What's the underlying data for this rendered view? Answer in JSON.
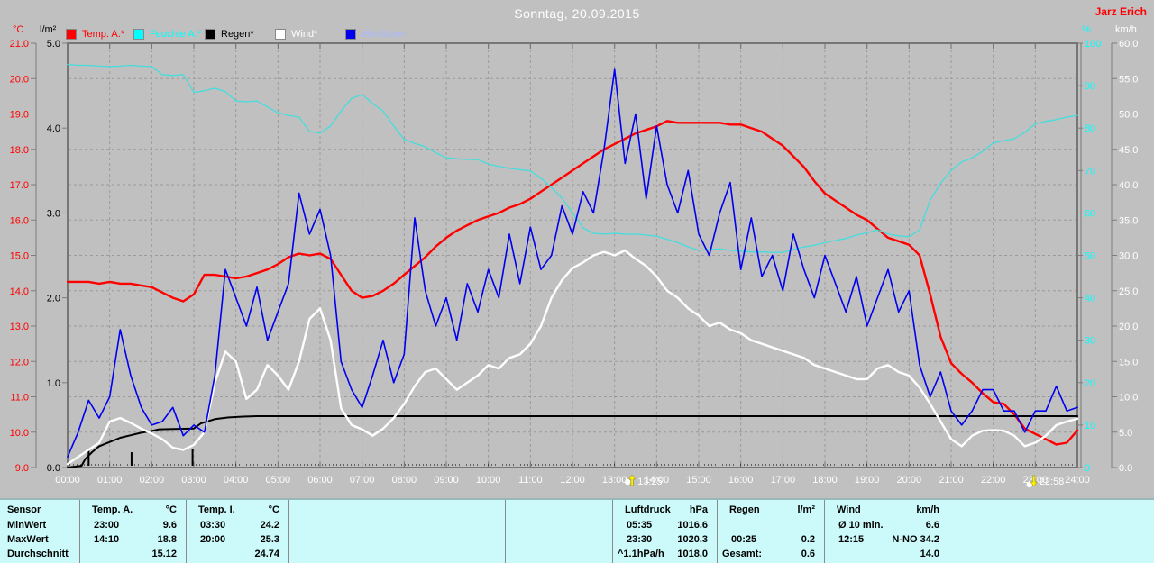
{
  "header": {
    "title": "Sonntag, 20.09.2015",
    "watermark": "Jarz Erich"
  },
  "legend": [
    {
      "label": "Temp. A.*",
      "color": "#ff0000",
      "label_color": "#ff0000"
    },
    {
      "label": "Feuchte A.*",
      "color": "#00ffff",
      "label_color": "#00ffff"
    },
    {
      "label": "Regen*",
      "color": "#000000",
      "label_color": "#000000"
    },
    {
      "label": "Wind*",
      "color": "#ffffff",
      "label_color": "#ffffff"
    },
    {
      "label": "Windböen",
      "color": "#0000ee",
      "label_color": "#aab8ff"
    }
  ],
  "axes": {
    "temp": {
      "unit": "°C",
      "color": "#ff0000",
      "min": 9,
      "max": 21,
      "tick_labels": [
        "21.0",
        "20.0",
        "19.0",
        "18.0",
        "17.0",
        "16.0",
        "15.0",
        "14.0",
        "13.0",
        "12.0",
        "11.0",
        "10.0",
        "9.0"
      ]
    },
    "rain": {
      "unit": "l/m²",
      "color": "#000000",
      "min": 0,
      "max": 5,
      "tick_labels": [
        "5.0",
        "4.0",
        "3.0",
        "2.0",
        "1.0",
        "0.0"
      ]
    },
    "humidity": {
      "unit": "%",
      "color": "#00ffff",
      "min": 0,
      "max": 100,
      "tick_labels": [
        "100",
        "90",
        "80",
        "70",
        "60",
        "50",
        "40",
        "30",
        "20",
        "10",
        "0"
      ]
    },
    "wind": {
      "unit": "km/h",
      "color": "#ffffff",
      "min": 0,
      "max": 60,
      "tick_labels": [
        "60.0",
        "55.0",
        "50.0",
        "45.0",
        "40.0",
        "35.0",
        "30.0",
        "25.0",
        "20.0",
        "15.0",
        "10.0",
        "5.0",
        "0.0"
      ]
    },
    "time": {
      "tick_labels": [
        "00:00",
        "01:00",
        "02:00",
        "03:00",
        "04:00",
        "05:00",
        "06:00",
        "07:00",
        "08:00",
        "09:00",
        "10:00",
        "11:00",
        "12:00",
        "13:00",
        "14:00",
        "15:00",
        "16:00",
        "17:00",
        "18:00",
        "19:00",
        "20:00",
        "21:00",
        "22:00",
        "23:00",
        "24:00"
      ]
    }
  },
  "chart_data": {
    "type": "line",
    "title": "Sonntag, 20.09.2015",
    "x_unit": "hours",
    "x_range": [
      0,
      24
    ],
    "x_step_minutes": 15,
    "grid": {
      "x_interval_hours": 1,
      "y_interval_temp_c": 1
    },
    "series": [
      {
        "name": "Temp. A.*",
        "axis": "temp",
        "color": "#ff0000",
        "width": 2.4,
        "values": [
          14.25,
          14.25,
          14.25,
          14.2,
          14.25,
          14.2,
          14.2,
          14.15,
          14.1,
          13.95,
          13.8,
          13.7,
          13.9,
          14.45,
          14.45,
          14.4,
          14.35,
          14.4,
          14.5,
          14.6,
          14.75,
          14.95,
          15.05,
          15.0,
          15.05,
          14.9,
          14.45,
          14.0,
          13.8,
          13.85,
          14.0,
          14.2,
          14.45,
          14.7,
          14.95,
          15.25,
          15.5,
          15.7,
          15.85,
          16.0,
          16.1,
          16.2,
          16.35,
          16.45,
          16.6,
          16.8,
          17.0,
          17.2,
          17.4,
          17.6,
          17.8,
          18.0,
          18.15,
          18.3,
          18.45,
          18.55,
          18.65,
          18.8,
          18.75,
          18.75,
          18.75,
          18.75,
          18.75,
          18.7,
          18.7,
          18.6,
          18.5,
          18.3,
          18.1,
          17.8,
          17.5,
          17.1,
          16.75,
          16.55,
          16.35,
          16.15,
          16.0,
          15.75,
          15.5,
          15.4,
          15.3,
          15.0,
          13.9,
          12.7,
          11.95,
          11.65,
          11.4,
          11.1,
          10.85,
          10.8,
          10.5,
          10.1,
          9.95,
          9.8,
          9.65,
          9.7,
          10.05
        ]
      },
      {
        "name": "Feuchte A.*",
        "axis": "humidity",
        "color": "#44dddd",
        "width": 1.3,
        "values": [
          95.0,
          94.8,
          94.8,
          94.6,
          94.5,
          94.6,
          94.8,
          94.6,
          94.5,
          92.6,
          92.4,
          92.6,
          88.4,
          88.8,
          89.4,
          88.6,
          86.4,
          86.2,
          86.4,
          85.0,
          83.6,
          83.0,
          82.6,
          79.2,
          78.8,
          80.5,
          84.0,
          87.0,
          87.9,
          85.8,
          84.0,
          80.5,
          77.3,
          76.4,
          75.6,
          74.2,
          73.0,
          72.8,
          72.6,
          72.6,
          71.5,
          71.0,
          70.5,
          70.2,
          69.9,
          68.2,
          66.0,
          63.5,
          60.0,
          56.5,
          55.2,
          55.0,
          55.2,
          55.0,
          55.0,
          54.8,
          54.5,
          53.8,
          53.0,
          52.0,
          51.2,
          51.4,
          51.5,
          51.2,
          51.0,
          50.8,
          50.8,
          50.7,
          50.7,
          51.4,
          52.0,
          52.4,
          53.0,
          53.5,
          54.0,
          54.8,
          55.3,
          56.0,
          55.0,
          54.6,
          54.4,
          56.0,
          63.0,
          67.0,
          70.0,
          72.0,
          73.0,
          74.5,
          76.5,
          77.0,
          77.5,
          79.0,
          81.0,
          81.6,
          82.0,
          82.6,
          83.0
        ]
      },
      {
        "name": "Regen*",
        "axis": "rain",
        "color": "#000000",
        "width": 2,
        "x": [
          0,
          0.33,
          0.42,
          0.5,
          0.58,
          0.75,
          1.0,
          1.25,
          1.5,
          1.75,
          2.0,
          2.17,
          3.0,
          3.17,
          3.5,
          3.83,
          4.17,
          4.5,
          24.0
        ],
        "values": [
          0,
          0.02,
          0.1,
          0.14,
          0.18,
          0.25,
          0.3,
          0.35,
          0.38,
          0.41,
          0.43,
          0.45,
          0.46,
          0.52,
          0.57,
          0.59,
          0.6,
          0.605,
          0.605
        ]
      },
      {
        "name": "Wind*",
        "axis": "wind",
        "color": "#ffffff",
        "width": 2.4,
        "values": [
          0.5,
          1.5,
          2.5,
          3.5,
          6.5,
          7.0,
          6.3,
          5.5,
          4.8,
          4.0,
          2.8,
          2.5,
          3.2,
          5.0,
          12.0,
          16.4,
          15.0,
          9.7,
          11.0,
          14.5,
          13.0,
          11.0,
          15.0,
          21.0,
          22.5,
          18.0,
          8.4,
          6.0,
          5.4,
          4.5,
          5.5,
          7.0,
          9.0,
          11.5,
          13.5,
          14.0,
          12.5,
          11.0,
          12.0,
          13.0,
          14.5,
          14.0,
          15.5,
          16.0,
          17.5,
          20.0,
          24.0,
          26.5,
          28.2,
          29.0,
          30.0,
          30.5,
          30.0,
          30.7,
          29.5,
          28.5,
          27.0,
          25.0,
          24.0,
          22.5,
          21.5,
          20.0,
          20.5,
          19.5,
          19.0,
          18.0,
          17.5,
          17.0,
          16.5,
          16.0,
          15.5,
          14.5,
          14.0,
          13.5,
          13.0,
          12.5,
          12.5,
          14.0,
          14.5,
          13.5,
          13.0,
          11.3,
          9.0,
          6.5,
          4.0,
          3.0,
          4.5,
          5.2,
          5.3,
          5.2,
          4.5,
          3.0,
          3.5,
          4.5,
          6.0,
          6.5,
          6.9
        ]
      },
      {
        "name": "Windböen",
        "axis": "wind",
        "color": "#0000ee",
        "width": 1.6,
        "values": [
          1.5,
          5.0,
          9.5,
          7.0,
          10.0,
          19.5,
          13.0,
          8.5,
          6.0,
          6.5,
          8.5,
          4.5,
          6.0,
          5.0,
          13.0,
          28.0,
          24.0,
          20.0,
          25.5,
          18.0,
          22.0,
          26.0,
          38.8,
          33.0,
          36.5,
          30.0,
          15.0,
          11.0,
          8.5,
          13.0,
          18.0,
          12.0,
          16.0,
          35.3,
          25.0,
          20.0,
          24.0,
          18.0,
          26.0,
          22.0,
          28.0,
          24.0,
          33.0,
          26.0,
          34.0,
          28.0,
          30.0,
          37.0,
          33.0,
          39.0,
          36.0,
          45.0,
          56.3,
          43.0,
          50.0,
          38.0,
          48.3,
          40.0,
          36.0,
          42.0,
          33.0,
          30.0,
          36.0,
          40.3,
          28.0,
          35.3,
          27.0,
          30.0,
          25.0,
          33.0,
          28.0,
          24.0,
          30.0,
          26.0,
          22.0,
          27.0,
          20.0,
          24.0,
          28.0,
          22.0,
          25.0,
          14.5,
          10.0,
          13.5,
          8.0,
          6.0,
          8.0,
          11.0,
          11.0,
          8.0,
          8.0,
          5.0,
          8.0,
          8.0,
          11.5,
          8.0,
          8.5
        ]
      }
    ],
    "rain_events": [
      {
        "t": 0.5,
        "value": 0.22
      },
      {
        "t": 1.52,
        "value": 0.18
      },
      {
        "t": 2.97,
        "value": 0.22
      }
    ],
    "markers": [
      {
        "time": "13:25",
        "t": 13.4167,
        "direction": "up"
      },
      {
        "time": "22:58",
        "t": 22.9667,
        "direction": "down"
      }
    ]
  },
  "table": {
    "row_labels": [
      "Sensor",
      "MinWert",
      "MaxWert",
      "Durchschnitt"
    ],
    "sections": [
      {
        "name": "Temp. A.",
        "unit": "°C",
        "min_time": "23:00",
        "min_value": "9.6",
        "max_time": "14:10",
        "max_value": "18.8",
        "avg_label": "",
        "avg_value": "15.12"
      },
      {
        "name": "Temp. I.",
        "unit": "°C",
        "min_time": "03:30",
        "min_value": "24.2",
        "max_time": "20:00",
        "max_value": "25.3",
        "avg_label": "",
        "avg_value": "24.74"
      },
      {
        "name": "Luftdruck",
        "unit": "hPa",
        "min_time": "05:35",
        "min_value": "1016.6",
        "max_time": "23:30",
        "max_value": "1020.3",
        "avg_label": "^1.1hPa/h",
        "avg_value": "1018.0"
      },
      {
        "name": "Regen",
        "unit": "l/m²",
        "min_time": "",
        "min_value": "",
        "max_time": "00:25",
        "max_value": "0.2",
        "avg_label": "Gesamt:",
        "avg_value": "0.6"
      },
      {
        "name": "Wind",
        "unit": "km/h",
        "min_time": "Ø 10 min.",
        "min_value": "6.6",
        "max_time": "12:15",
        "max_value": "N-NO 34.2",
        "avg_label": "",
        "avg_value": "14.0"
      }
    ]
  }
}
